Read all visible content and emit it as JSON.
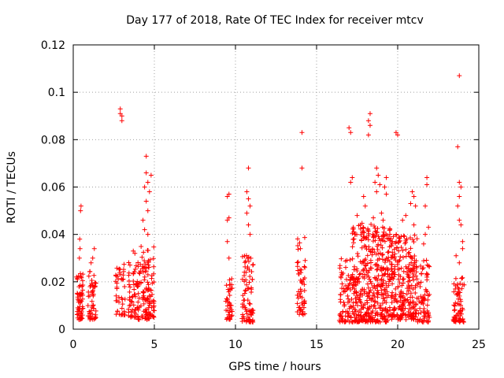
{
  "chart_data": {
    "type": "scatter",
    "title": "Day 177 of 2018, Rate Of TEC Index for receiver mtcv",
    "xlabel": "GPS time / hours",
    "ylabel": "ROTI / TECUs",
    "xlim": [
      0,
      25
    ],
    "ylim": [
      0,
      0.12
    ],
    "xticks": [
      0,
      5,
      10,
      15,
      20,
      25
    ],
    "xtick_labels": [
      "0",
      "5",
      "10",
      "15",
      "20",
      "25"
    ],
    "yticks": [
      0,
      0.02,
      0.04,
      0.06,
      0.08,
      0.1,
      0.12
    ],
    "ytick_labels": [
      "0",
      "0.02",
      "0.04",
      "0.06",
      "0.08",
      "0.1",
      "0.12"
    ],
    "grid": true,
    "marker": "plus",
    "color": "#ff0000",
    "series": [
      {
        "clusters": [
          {
            "x_range": [
              0.2,
              0.6
            ],
            "y_range": [
              0.004,
              0.024
            ],
            "n": 60,
            "extras": [
              [
                0.45,
                0.05
              ],
              [
                0.48,
                0.052
              ],
              [
                0.4,
                0.038
              ],
              [
                0.42,
                0.034
              ],
              [
                0.38,
                0.03
              ]
            ]
          },
          {
            "x_range": [
              0.9,
              1.4
            ],
            "y_range": [
              0.004,
              0.025
            ],
            "n": 55,
            "extras": [
              [
                1.2,
                0.03
              ],
              [
                1.3,
                0.034
              ],
              [
                1.1,
                0.028
              ]
            ]
          },
          {
            "x_range": [
              2.6,
              3.2
            ],
            "y_range": [
              0.006,
              0.028
            ],
            "n": 45,
            "extras": [
              [
                2.9,
                0.093
              ],
              [
                3.0,
                0.09
              ],
              [
                3.0,
                0.088
              ],
              [
                2.9,
                0.091
              ]
            ]
          },
          {
            "x_range": [
              3.4,
              4.0
            ],
            "y_range": [
              0.005,
              0.03
            ],
            "n": 60,
            "extras": [
              [
                3.7,
                0.033
              ],
              [
                3.8,
                0.032
              ]
            ]
          },
          {
            "x_range": [
              4.0,
              5.0
            ],
            "y_range": [
              0.004,
              0.035
            ],
            "n": 120,
            "extras": [
              [
                4.5,
                0.073
              ],
              [
                4.5,
                0.066
              ],
              [
                4.6,
                0.062
              ],
              [
                4.4,
                0.06
              ],
              [
                4.7,
                0.058
              ],
              [
                4.5,
                0.054
              ],
              [
                4.6,
                0.05
              ],
              [
                4.8,
                0.065
              ],
              [
                4.3,
                0.046
              ],
              [
                4.4,
                0.042
              ],
              [
                4.6,
                0.04
              ]
            ]
          },
          {
            "x_range": [
              9.4,
              9.8
            ],
            "y_range": [
              0.004,
              0.022
            ],
            "n": 40,
            "extras": [
              [
                9.6,
                0.057
              ],
              [
                9.5,
                0.056
              ],
              [
                9.6,
                0.047
              ],
              [
                9.5,
                0.046
              ],
              [
                9.5,
                0.037
              ],
              [
                9.6,
                0.03
              ]
            ]
          },
          {
            "x_range": [
              10.4,
              11.1
            ],
            "y_range": [
              0.003,
              0.032
            ],
            "n": 80,
            "extras": [
              [
                10.8,
                0.068
              ],
              [
                10.7,
                0.058
              ],
              [
                10.8,
                0.055
              ],
              [
                10.9,
                0.052
              ],
              [
                10.7,
                0.049
              ],
              [
                10.8,
                0.044
              ],
              [
                10.9,
                0.04
              ]
            ]
          },
          {
            "x_range": [
              13.8,
              14.3
            ],
            "y_range": [
              0.006,
              0.04
            ],
            "n": 55,
            "extras": [
              [
                14.1,
                0.083
              ],
              [
                14.1,
                0.068
              ]
            ]
          },
          {
            "x_range": [
              16.4,
              17.2
            ],
            "y_range": [
              0.003,
              0.03
            ],
            "n": 80,
            "extras": [
              [
                17.0,
                0.085
              ],
              [
                17.1,
                0.083
              ],
              [
                17.2,
                0.064
              ],
              [
                17.1,
                0.062
              ]
            ]
          },
          {
            "x_range": [
              17.2,
              19.6
            ],
            "y_range": [
              0.003,
              0.045
            ],
            "n": 420,
            "extras": [
              [
                18.3,
                0.091
              ],
              [
                18.2,
                0.088
              ],
              [
                18.3,
                0.086
              ],
              [
                18.2,
                0.082
              ],
              [
                18.7,
                0.068
              ],
              [
                18.8,
                0.065
              ],
              [
                18.6,
                0.062
              ],
              [
                18.9,
                0.061
              ],
              [
                18.7,
                0.058
              ],
              [
                19.3,
                0.064
              ],
              [
                19.2,
                0.06
              ],
              [
                19.3,
                0.057
              ],
              [
                17.9,
                0.056
              ],
              [
                18.0,
                0.052
              ],
              [
                17.5,
                0.048
              ],
              [
                17.7,
                0.044
              ],
              [
                19.0,
                0.049
              ],
              [
                19.1,
                0.046
              ],
              [
                18.5,
                0.047
              ]
            ]
          },
          {
            "x_range": [
              19.6,
              21.2
            ],
            "y_range": [
              0.004,
              0.04
            ],
            "n": 260,
            "extras": [
              [
                19.9,
                0.083
              ],
              [
                20.0,
                0.082
              ],
              [
                20.9,
                0.058
              ],
              [
                21.0,
                0.056
              ],
              [
                20.8,
                0.053
              ],
              [
                21.1,
                0.052
              ],
              [
                20.5,
                0.048
              ],
              [
                20.3,
                0.046
              ],
              [
                21.0,
                0.044
              ]
            ]
          },
          {
            "x_range": [
              21.2,
              22.0
            ],
            "y_range": [
              0.003,
              0.03
            ],
            "n": 70,
            "extras": [
              [
                21.8,
                0.064
              ],
              [
                21.8,
                0.061
              ],
              [
                21.7,
                0.052
              ],
              [
                21.9,
                0.043
              ],
              [
                21.7,
                0.04
              ],
              [
                21.6,
                0.036
              ]
            ]
          },
          {
            "x_range": [
              23.4,
              24.1
            ],
            "y_range": [
              0.003,
              0.022
            ],
            "n": 70,
            "extras": [
              [
                23.8,
                0.107
              ],
              [
                23.7,
                0.077
              ],
              [
                23.8,
                0.062
              ],
              [
                23.9,
                0.06
              ],
              [
                23.8,
                0.056
              ],
              [
                23.7,
                0.052
              ],
              [
                23.8,
                0.046
              ],
              [
                23.9,
                0.044
              ],
              [
                24.0,
                0.037
              ],
              [
                23.6,
                0.031
              ],
              [
                23.8,
                0.028
              ],
              [
                24.0,
                0.034
              ]
            ]
          }
        ]
      }
    ]
  }
}
